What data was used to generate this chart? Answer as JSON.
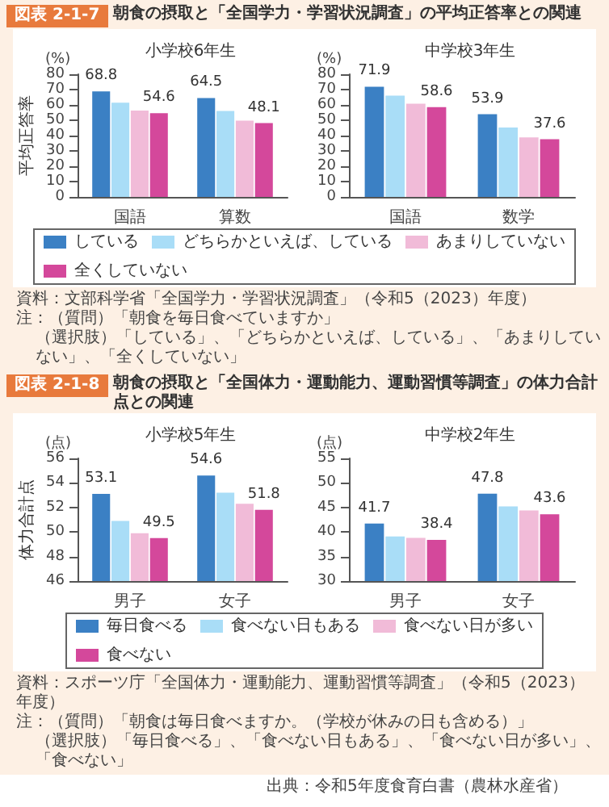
{
  "chart_data": [
    {
      "type": "bar",
      "title": "小学校6年生",
      "ylabel": "平均正答率",
      "categories": [
        "国語",
        "算数"
      ],
      "ylim": [
        0,
        80
      ],
      "yticks": [
        0,
        10,
        20,
        30,
        40,
        50,
        60,
        70,
        80
      ],
      "grid": false,
      "legend": "bottom",
      "annotations": [
        "図表 2-1-7",
        "朝食の摂取と「全国学力・学習状況調査」の平均正答率との関連",
        "(%)",
        "資料：文部科学省「全国学力・学習状況調査」（令和5（2023）年度）",
        "注：（質問）「朝食を毎日食べていますか」",
        "（選択肢）「している」、「どちらかといえば、している」、「あまりしていない」、「全くしていない」"
      ],
      "series": [
        {
          "name": "している",
          "color": "#3b80c4",
          "values": [
            68.8,
            64.5
          ],
          "value_labels": [
            "68.8",
            "64.5"
          ]
        },
        {
          "name": "どちらかといえば、している",
          "color": "#a9ddf7",
          "values": [
            61.5,
            56.0
          ],
          "value_labels": [
            null,
            null
          ]
        },
        {
          "name": "あまりしていない",
          "color": "#f1bbd8",
          "values": [
            56.3,
            49.7
          ],
          "value_labels": [
            null,
            null
          ]
        },
        {
          "name": "全くしていない",
          "color": "#d4489b",
          "values": [
            54.6,
            48.1
          ],
          "value_labels": [
            "54.6",
            "48.1"
          ]
        }
      ]
    },
    {
      "type": "bar",
      "title": "中学校3年生",
      "categories": [
        "国語",
        "数学"
      ],
      "ylim": [
        0,
        80
      ],
      "yticks": [
        0,
        10,
        20,
        30,
        40,
        50,
        60,
        70,
        80
      ],
      "grid": false,
      "annotations": [
        "(%)"
      ],
      "series": [
        {
          "color": "#3b80c4",
          "values": [
            71.9,
            53.9
          ],
          "value_labels": [
            "71.9",
            "53.9"
          ]
        },
        {
          "color": "#a9ddf7",
          "values": [
            66.0,
            45.3
          ],
          "value_labels": [
            null,
            null
          ]
        },
        {
          "color": "#f1bbd8",
          "values": [
            60.8,
            38.8
          ],
          "value_labels": [
            null,
            null
          ]
        },
        {
          "color": "#d4489b",
          "values": [
            58.6,
            37.6
          ],
          "value_labels": [
            "58.6",
            "37.6"
          ]
        }
      ]
    },
    {
      "type": "bar",
      "title": "小学校5年生",
      "ylabel": "体力合計点",
      "categories": [
        "男子",
        "女子"
      ],
      "ylim": [
        46,
        56
      ],
      "yticks": [
        46,
        48,
        50,
        52,
        54,
        56
      ],
      "grid": false,
      "legend": "bottom",
      "annotations": [
        "図表 2-1-8",
        "朝食の摂取と「全国体力・運動能力、運動習慣等調査」の体力合計点との関連",
        "(点)",
        "資料：スポーツ庁「全国体力・運動能力、運動習慣等調査」（令和5（2023）年度）",
        "注：（質問）「朝食は毎日食べますか。（学校が休みの日も含める）」",
        "（選択肢）「毎日食べる」、「食べない日もある」、「食べない日が多い」、「食べない」"
      ],
      "series": [
        {
          "name": "毎日食べる",
          "color": "#3b80c4",
          "values": [
            53.1,
            54.6
          ],
          "value_labels": [
            "53.1",
            "54.6"
          ]
        },
        {
          "name": "食べない日もある",
          "color": "#a9ddf7",
          "values": [
            50.9,
            53.2
          ],
          "value_labels": [
            null,
            null
          ]
        },
        {
          "name": "食べない日が多い",
          "color": "#f1bbd8",
          "values": [
            49.9,
            52.3
          ],
          "value_labels": [
            null,
            null
          ]
        },
        {
          "name": "食べない",
          "color": "#d4489b",
          "values": [
            49.5,
            51.8
          ],
          "value_labels": [
            "49.5",
            "51.8"
          ]
        }
      ]
    },
    {
      "type": "bar",
      "title": "中学校2年生",
      "categories": [
        "男子",
        "女子"
      ],
      "ylim": [
        30,
        55
      ],
      "yticks": [
        30,
        35,
        40,
        45,
        50,
        55
      ],
      "grid": false,
      "annotations": [
        "(点)",
        "出典：令和5年度食育白書（農林水産省）"
      ],
      "series": [
        {
          "color": "#3b80c4",
          "values": [
            41.7,
            47.8
          ],
          "value_labels": [
            "41.7",
            "47.8"
          ]
        },
        {
          "color": "#a9ddf7",
          "values": [
            39.1,
            45.2
          ],
          "value_labels": [
            null,
            null
          ]
        },
        {
          "color": "#f1bbd8",
          "values": [
            38.8,
            44.4
          ],
          "value_labels": [
            null,
            null
          ]
        },
        {
          "color": "#d4489b",
          "values": [
            38.4,
            43.6
          ],
          "value_labels": [
            "38.4",
            "43.6"
          ]
        }
      ]
    }
  ]
}
